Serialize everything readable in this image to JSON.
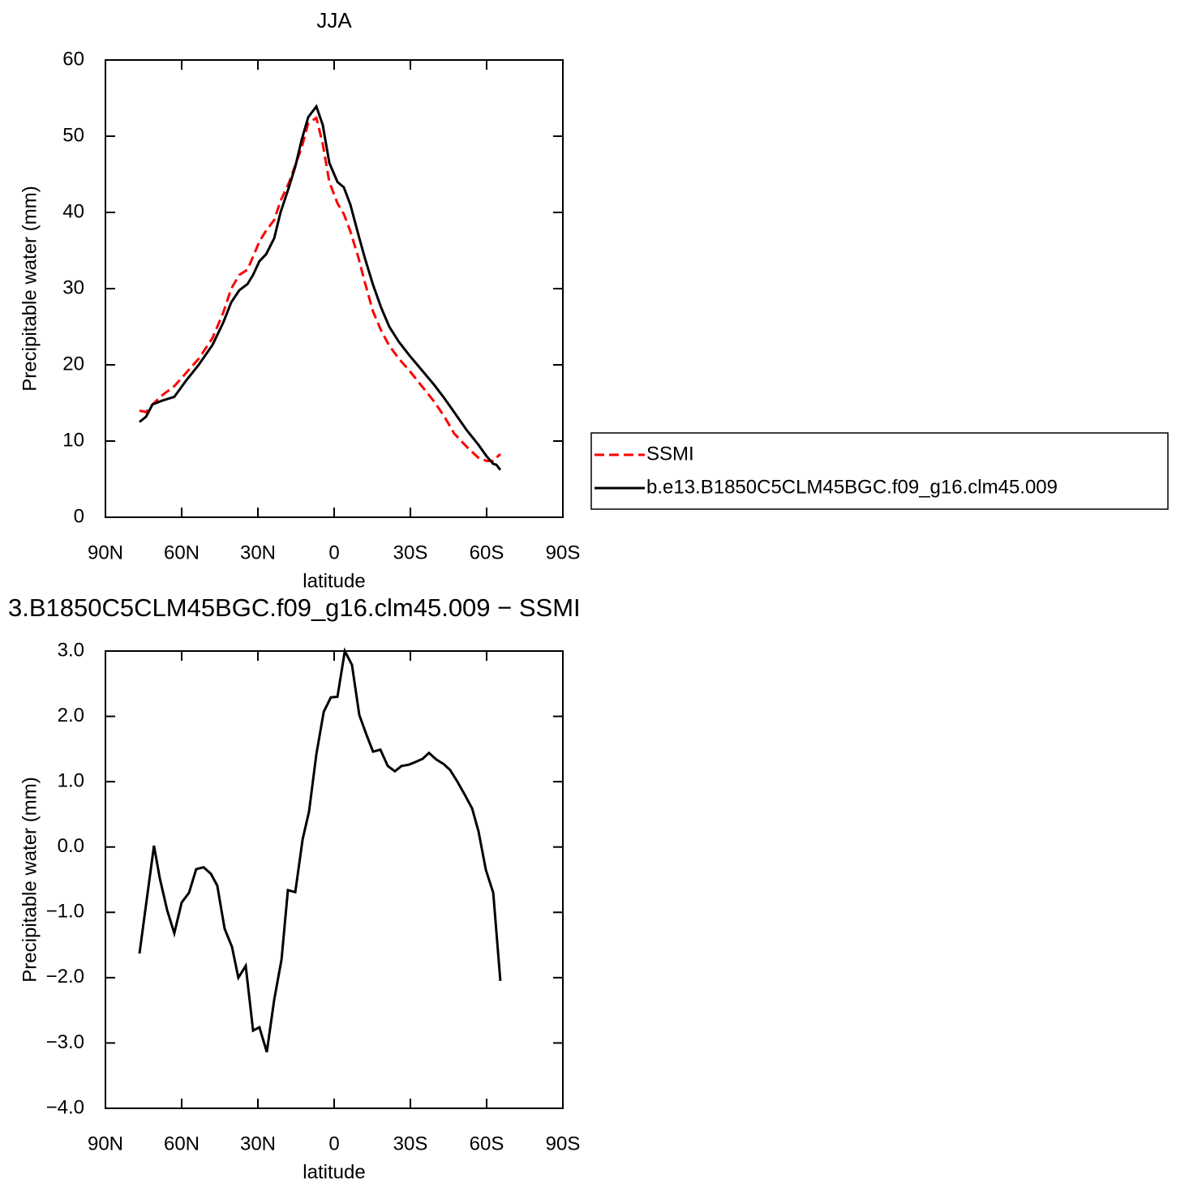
{
  "chart_data": [
    {
      "type": "line",
      "title": "JJA",
      "xlabel": "latitude",
      "ylabel": "Precipitable water (mm)",
      "xlim": [
        90,
        -90
      ],
      "ylim": [
        0,
        60
      ],
      "xticks": [
        {
          "value": 90,
          "label": "90N"
        },
        {
          "value": 60,
          "label": "60N"
        },
        {
          "value": 30,
          "label": "30N"
        },
        0,
        {
          "value": -30,
          "label": "30S"
        },
        {
          "value": -60,
          "label": "60S"
        },
        {
          "value": -90,
          "label": "90S"
        }
      ],
      "yticks": [
        0,
        10,
        20,
        30,
        40,
        50,
        60
      ],
      "legend": "right",
      "x": [
        76.6,
        74.0,
        71.5,
        67.7,
        62.9,
        58.1,
        53.3,
        47.9,
        43.7,
        40.5,
        37.3,
        34.1,
        31.9,
        29.4,
        26.8,
        23.6,
        21.1,
        17.9,
        15.3,
        12.8,
        10.2,
        7.0,
        4.5,
        1.9,
        -1.3,
        -3.8,
        -6.4,
        -9.6,
        -12.1,
        -15.3,
        -18.5,
        -21.7,
        -25.5,
        -29.7,
        -34.5,
        -39.3,
        -43.4,
        -47.2,
        -52.0,
        -56.8,
        -60.0,
        -62.6,
        -63.8,
        -65.4
      ],
      "series": [
        {
          "name": "SSMI",
          "color": "#ff0000",
          "linestyle": "dashed",
          "values": [
            14,
            13.8,
            14.8,
            16,
            17.2,
            19,
            20.8,
            23.5,
            26.8,
            30,
            31.8,
            32.5,
            34.2,
            36.2,
            37.6,
            39,
            41.5,
            43.8,
            46.2,
            48.5,
            51.7,
            52.4,
            49,
            44,
            41.2,
            39.8,
            37.5,
            34,
            30.8,
            27,
            24.5,
            22.5,
            20.8,
            19.2,
            17.2,
            15.2,
            13.2,
            11,
            9.3,
            7.8,
            7.4,
            7.4,
            7.8,
            8.3
          ]
        },
        {
          "name": "b.e13.B1850C5CLM45BGC.f09_g16.clm45.009",
          "color": "#000000",
          "linestyle": "solid",
          "values": [
            12.5,
            13.2,
            14.8,
            15.3,
            15.8,
            18,
            20,
            22.6,
            25.5,
            28.2,
            29.8,
            30.6,
            31.8,
            33.6,
            34.5,
            36.6,
            40,
            43.2,
            46,
            49.5,
            52.5,
            53.9,
            51.5,
            46.5,
            44,
            43.3,
            41,
            37,
            34,
            30.5,
            27.5,
            25,
            23,
            21.2,
            19.3,
            17.4,
            15.6,
            13.8,
            11.5,
            9.5,
            8,
            7,
            6.9,
            6.2
          ]
        }
      ]
    },
    {
      "type": "line",
      "title": "3.B1850C5CLM45BGC.f09_g16.clm45.009 − SSMI",
      "xlabel": "latitude",
      "ylabel": "Precipitable water (mm)",
      "xlim": [
        90,
        -90
      ],
      "ylim": [
        -4,
        3
      ],
      "xticks": [
        {
          "value": 90,
          "label": "90N"
        },
        {
          "value": 60,
          "label": "60N"
        },
        {
          "value": 30,
          "label": "30N"
        },
        0,
        {
          "value": -30,
          "label": "30S"
        },
        {
          "value": -60,
          "label": "60S"
        },
        {
          "value": -90,
          "label": "90S"
        }
      ],
      "yticks": [
        {
          "value": -4,
          "label": "−4.0"
        },
        {
          "value": -3,
          "label": "−3.0"
        },
        {
          "value": -2,
          "label": "−2.0"
        },
        {
          "value": -1,
          "label": "−1.0"
        },
        {
          "value": 0,
          "label": "0.0"
        },
        {
          "value": 1,
          "label": "1.0"
        },
        {
          "value": 2,
          "label": "2.0"
        },
        {
          "value": 3,
          "label": "3.0"
        }
      ],
      "x": [
        76.6,
        70.9,
        68.6,
        65.7,
        62.9,
        60.0,
        57.1,
        54.3,
        51.4,
        48.5,
        46.0,
        43.1,
        40.2,
        37.7,
        34.8,
        31.9,
        29.4,
        26.5,
        23.6,
        20.7,
        18.2,
        15.3,
        12.4,
        9.9,
        7.0,
        4.1,
        1.3,
        -1.3,
        -4.2,
        -7.0,
        -9.9,
        -12.8,
        -15.3,
        -18.2,
        -21.1,
        -23.9,
        -26.5,
        -29.4,
        -31.9,
        -34.8,
        -37.3,
        -40.2,
        -43.1,
        -45.6,
        -48.5,
        -51.4,
        -54.3,
        -56.8,
        -59.7,
        -62.6,
        -65.4
      ],
      "series": [
        {
          "color": "#000000",
          "linestyle": "solid",
          "values": [
            -1.63,
            0.02,
            -0.48,
            -0.97,
            -1.32,
            -0.85,
            -0.7,
            -0.34,
            -0.31,
            -0.41,
            -0.59,
            -1.25,
            -1.53,
            -2.0,
            -1.82,
            -2.81,
            -2.76,
            -3.14,
            -2.34,
            -1.72,
            -0.66,
            -0.69,
            0.12,
            0.54,
            1.42,
            2.07,
            2.29,
            2.3,
            3.0,
            2.79,
            2.02,
            1.71,
            1.46,
            1.49,
            1.24,
            1.16,
            1.24,
            1.26,
            1.3,
            1.35,
            1.44,
            1.34,
            1.27,
            1.18,
            1.0,
            0.8,
            0.59,
            0.24,
            -0.35,
            -0.7,
            -2.05
          ]
        }
      ]
    }
  ]
}
